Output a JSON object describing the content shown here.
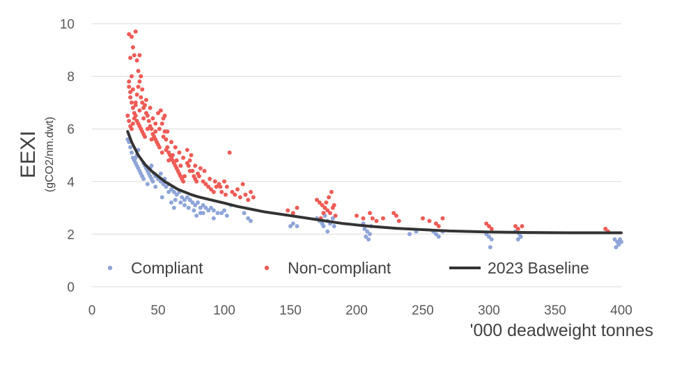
{
  "chart_data": {
    "type": "scatter",
    "title": "",
    "xlabel": "'000 deadweight tonnes",
    "ylabel": "EEXI",
    "ylabel_sub": "(gCO2/nm.dwt)",
    "xlim": [
      0,
      400
    ],
    "ylim": [
      0,
      10
    ],
    "x_ticks": [
      0,
      50,
      100,
      150,
      200,
      250,
      300,
      350,
      400
    ],
    "y_ticks": [
      0,
      2,
      4,
      6,
      8,
      10
    ],
    "grid": "horizontal",
    "legend_position": "bottom",
    "colors": {
      "compliant": "#8EA5D8",
      "non_compliant": "#EE5B55",
      "baseline": "#333333"
    },
    "series": [
      {
        "name": "Compliant",
        "kind": "scatter",
        "points": [
          [
            27,
            5.6
          ],
          [
            28,
            5.5
          ],
          [
            29,
            5.3
          ],
          [
            30,
            5.1
          ],
          [
            31,
            4.9
          ],
          [
            32,
            4.8
          ],
          [
            33,
            4.7
          ],
          [
            34,
            4.6
          ],
          [
            35,
            4.5
          ],
          [
            36,
            4.4
          ],
          [
            37,
            4.3
          ],
          [
            38,
            4.2
          ],
          [
            39,
            4.7
          ],
          [
            40,
            4.6
          ],
          [
            41,
            4.5
          ],
          [
            42,
            4.4
          ],
          [
            43,
            4.3
          ],
          [
            44,
            4.2
          ],
          [
            45,
            4.1
          ],
          [
            46,
            4.0
          ],
          [
            48,
            4.2
          ],
          [
            50,
            4.1
          ],
          [
            52,
            4.0
          ],
          [
            54,
            3.9
          ],
          [
            56,
            3.8
          ],
          [
            58,
            3.9
          ],
          [
            60,
            3.7
          ],
          [
            62,
            3.6
          ],
          [
            64,
            3.5
          ],
          [
            66,
            3.6
          ],
          [
            68,
            3.4
          ],
          [
            70,
            3.3
          ],
          [
            72,
            3.4
          ],
          [
            74,
            3.3
          ],
          [
            76,
            3.2
          ],
          [
            78,
            3.1
          ],
          [
            80,
            3.2
          ],
          [
            82,
            3.0
          ],
          [
            84,
            3.1
          ],
          [
            86,
            3.0
          ],
          [
            88,
            2.9
          ],
          [
            90,
            3.0
          ],
          [
            92,
            2.9
          ],
          [
            95,
            2.8
          ],
          [
            98,
            2.8
          ],
          [
            100,
            2.9
          ],
          [
            102,
            2.7
          ],
          [
            105,
            3.1
          ],
          [
            35,
            5.2
          ],
          [
            34,
            5.0
          ],
          [
            33,
            4.9
          ],
          [
            45,
            4.6
          ],
          [
            44,
            4.5
          ],
          [
            47,
            4.3
          ],
          [
            52,
            4.3
          ],
          [
            55,
            4.1
          ],
          [
            58,
            3.6
          ],
          [
            63,
            3.3
          ],
          [
            67,
            3.2
          ],
          [
            73,
            3.0
          ],
          [
            77,
            2.9
          ],
          [
            82,
            2.8
          ],
          [
            39,
            4.1
          ],
          [
            42,
            3.9
          ],
          [
            48,
            3.8
          ],
          [
            53,
            3.4
          ],
          [
            60,
            3.2
          ],
          [
            62,
            3.0
          ],
          [
            70,
            3.1
          ],
          [
            79,
            2.7
          ],
          [
            84,
            2.8
          ],
          [
            92,
            2.6
          ],
          [
            115,
            2.8
          ],
          [
            118,
            2.6
          ],
          [
            120,
            2.5
          ],
          [
            150,
            2.3
          ],
          [
            152,
            2.4
          ],
          [
            155,
            2.3
          ],
          [
            170,
            2.6
          ],
          [
            172,
            2.5
          ],
          [
            174,
            2.4
          ],
          [
            176,
            2.7
          ],
          [
            178,
            2.5
          ],
          [
            180,
            2.4
          ],
          [
            182,
            2.6
          ],
          [
            175,
            2.3
          ],
          [
            183,
            2.3
          ],
          [
            178,
            2.1
          ],
          [
            206,
            2.2
          ],
          [
            208,
            2.1
          ],
          [
            210,
            2.0
          ],
          [
            207,
            1.9
          ],
          [
            209,
            1.8
          ],
          [
            211,
            2.3
          ],
          [
            205,
            2.4
          ],
          [
            240,
            2.0
          ],
          [
            245,
            2.1
          ],
          [
            258,
            2.1
          ],
          [
            260,
            2.0
          ],
          [
            262,
            1.9
          ],
          [
            265,
            2.1
          ],
          [
            298,
            2.0
          ],
          [
            300,
            1.9
          ],
          [
            302,
            1.8
          ],
          [
            301,
            1.5
          ],
          [
            320,
            2.1
          ],
          [
            322,
            1.8
          ],
          [
            324,
            1.9
          ],
          [
            323,
            2.0
          ],
          [
            395,
            1.8
          ],
          [
            397,
            1.7
          ],
          [
            398,
            1.6
          ],
          [
            399,
            1.8
          ],
          [
            400,
            1.7
          ],
          [
            396,
            1.5
          ]
        ]
      },
      {
        "name": "Non-compliant",
        "kind": "scatter",
        "points": [
          [
            28,
            9.6
          ],
          [
            30,
            9.5
          ],
          [
            33,
            9.7
          ],
          [
            31,
            9.1
          ],
          [
            32,
            8.8
          ],
          [
            34,
            8.6
          ],
          [
            29,
            8.7
          ],
          [
            36,
            8.8
          ],
          [
            35,
            8.2
          ],
          [
            30,
            8.0
          ],
          [
            28,
            7.6
          ],
          [
            29,
            7.2
          ],
          [
            30,
            7.0
          ],
          [
            31,
            6.8
          ],
          [
            32,
            6.6
          ],
          [
            33,
            6.5
          ],
          [
            34,
            6.3
          ],
          [
            35,
            6.2
          ],
          [
            36,
            6.1
          ],
          [
            37,
            6.0
          ],
          [
            38,
            5.9
          ],
          [
            39,
            5.8
          ],
          [
            40,
            5.7
          ],
          [
            27,
            6.5
          ],
          [
            28,
            6.3
          ],
          [
            29,
            6.1
          ],
          [
            30,
            6.0
          ],
          [
            31,
            6.2
          ],
          [
            32,
            6.4
          ],
          [
            33,
            7.0
          ],
          [
            34,
            7.3
          ],
          [
            35,
            7.6
          ],
          [
            36,
            7.8
          ],
          [
            37,
            7.2
          ],
          [
            38,
            7.0
          ],
          [
            39,
            6.8
          ],
          [
            40,
            6.9
          ],
          [
            41,
            7.1
          ],
          [
            42,
            6.5
          ],
          [
            43,
            6.3
          ],
          [
            44,
            6.1
          ],
          [
            45,
            6.0
          ],
          [
            46,
            5.8
          ],
          [
            47,
            5.7
          ],
          [
            48,
            5.6
          ],
          [
            49,
            5.5
          ],
          [
            50,
            5.4
          ],
          [
            52,
            6.7
          ],
          [
            55,
            6.5
          ],
          [
            54,
            6.4
          ],
          [
            50,
            6.6
          ],
          [
            53,
            6.2
          ],
          [
            55,
            5.9
          ],
          [
            56,
            5.6
          ],
          [
            57,
            5.3
          ],
          [
            58,
            5.1
          ],
          [
            59,
            5.0
          ],
          [
            60,
            4.9
          ],
          [
            61,
            4.8
          ],
          [
            62,
            4.7
          ],
          [
            63,
            4.6
          ],
          [
            64,
            4.5
          ],
          [
            65,
            4.4
          ],
          [
            66,
            4.3
          ],
          [
            67,
            4.2
          ],
          [
            68,
            4.1
          ],
          [
            69,
            4.0
          ],
          [
            70,
            4.2
          ],
          [
            72,
            5.2
          ],
          [
            75,
            5.0
          ],
          [
            74,
            4.8
          ],
          [
            73,
            4.6
          ],
          [
            76,
            4.4
          ],
          [
            77,
            4.2
          ],
          [
            78,
            4.1
          ],
          [
            79,
            4.0
          ],
          [
            80,
            4.3
          ],
          [
            82,
            4.5
          ],
          [
            84,
            4.0
          ],
          [
            86,
            3.9
          ],
          [
            88,
            3.8
          ],
          [
            90,
            3.7
          ],
          [
            92,
            3.6
          ],
          [
            94,
            3.8
          ],
          [
            96,
            3.9
          ],
          [
            98,
            3.6
          ],
          [
            100,
            4.0
          ],
          [
            102,
            3.8
          ],
          [
            104,
            5.1
          ],
          [
            106,
            3.6
          ],
          [
            108,
            3.5
          ],
          [
            110,
            3.7
          ],
          [
            112,
            3.4
          ],
          [
            114,
            3.9
          ],
          [
            116,
            3.5
          ],
          [
            118,
            3.3
          ],
          [
            120,
            3.6
          ],
          [
            122,
            3.4
          ],
          [
            148,
            2.9
          ],
          [
            152,
            2.8
          ],
          [
            155,
            3.0
          ],
          [
            170,
            3.3
          ],
          [
            172,
            3.2
          ],
          [
            174,
            3.1
          ],
          [
            176,
            3.0
          ],
          [
            178,
            2.9
          ],
          [
            180,
            2.8
          ],
          [
            182,
            3.0
          ],
          [
            184,
            2.7
          ],
          [
            173,
            2.6
          ],
          [
            175,
            2.8
          ],
          [
            177,
            3.2
          ],
          [
            179,
            3.4
          ],
          [
            181,
            3.6
          ],
          [
            183,
            3.1
          ],
          [
            200,
            2.7
          ],
          [
            205,
            2.6
          ],
          [
            210,
            2.8
          ],
          [
            212,
            2.6
          ],
          [
            215,
            2.5
          ],
          [
            220,
            2.6
          ],
          [
            228,
            2.8
          ],
          [
            230,
            2.7
          ],
          [
            232,
            2.5
          ],
          [
            250,
            2.6
          ],
          [
            255,
            2.5
          ],
          [
            260,
            2.4
          ],
          [
            262,
            2.3
          ],
          [
            265,
            2.6
          ],
          [
            298,
            2.4
          ],
          [
            300,
            2.3
          ],
          [
            302,
            2.2
          ],
          [
            320,
            2.3
          ],
          [
            322,
            2.2
          ],
          [
            325,
            2.3
          ],
          [
            388,
            2.2
          ],
          [
            390,
            2.1
          ],
          [
            28,
            7.8
          ],
          [
            29,
            7.4
          ],
          [
            31,
            7.5
          ],
          [
            37,
            8.0
          ],
          [
            38,
            7.5
          ],
          [
            41,
            6.6
          ],
          [
            44,
            6.8
          ],
          [
            46,
            6.4
          ],
          [
            48,
            6.2
          ],
          [
            51,
            6.0
          ],
          [
            54,
            5.7
          ],
          [
            57,
            5.9
          ],
          [
            60,
            5.5
          ],
          [
            63,
            5.3
          ],
          [
            66,
            5.1
          ],
          [
            69,
            4.9
          ],
          [
            72,
            4.7
          ],
          [
            74,
            4.4
          ],
          [
            78,
            4.6
          ],
          [
            81,
            4.2
          ],
          [
            85,
            4.4
          ],
          [
            89,
            4.1
          ],
          [
            93,
            4.0
          ],
          [
            97,
            3.8
          ],
          [
            101,
            3.5
          ],
          [
            33,
            6.9
          ],
          [
            36,
            6.7
          ],
          [
            39,
            6.4
          ],
          [
            42,
            6.0
          ],
          [
            45,
            5.6
          ],
          [
            48,
            5.9
          ],
          [
            51,
            5.3
          ],
          [
            53,
            5.1
          ],
          [
            56,
            5.2
          ],
          [
            58,
            4.8
          ],
          [
            61,
            5.0
          ],
          [
            64,
            4.8
          ],
          [
            67,
            4.6
          ]
        ]
      },
      {
        "name": "2023 Baseline",
        "kind": "line",
        "x": [
          27,
          30,
          35,
          40,
          45,
          50,
          55,
          60,
          65,
          70,
          75,
          80,
          90,
          100,
          110,
          120,
          130,
          150,
          170,
          190,
          200,
          210,
          230,
          250,
          270,
          300,
          330,
          360,
          400
        ],
        "y": [
          5.9,
          5.5,
          5.0,
          4.65,
          4.4,
          4.2,
          4.0,
          3.85,
          3.7,
          3.6,
          3.5,
          3.42,
          3.3,
          3.18,
          3.05,
          2.95,
          2.85,
          2.7,
          2.55,
          2.4,
          2.35,
          2.3,
          2.22,
          2.17,
          2.12,
          2.08,
          2.06,
          2.05,
          2.05
        ]
      }
    ]
  }
}
